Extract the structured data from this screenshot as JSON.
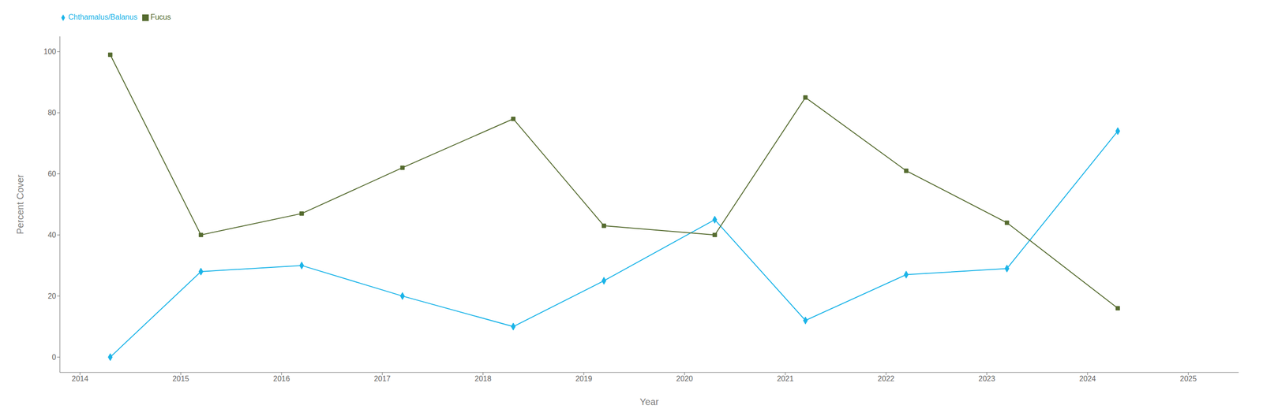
{
  "chart_data": {
    "type": "line",
    "x": [
      2014.3,
      2015.2,
      2016.2,
      2017.2,
      2018.3,
      2019.2,
      2020.3,
      2021.2,
      2022.2,
      2023.2,
      2024.3
    ],
    "series": [
      {
        "name": "Chthamalus/Balanus",
        "color": "#1BB4E8",
        "marker": "diamond",
        "values": [
          0,
          28,
          30,
          20,
          10,
          25,
          45,
          12,
          27,
          29,
          74
        ]
      },
      {
        "name": "Fucus",
        "color": "#556B2F",
        "marker": "square",
        "values": [
          99,
          40,
          47,
          62,
          78,
          43,
          40,
          85,
          61,
          44,
          16
        ]
      }
    ],
    "xlabel": "Year",
    "ylabel": "Percent Cover",
    "xlim": [
      2013.8,
      2025.5
    ],
    "ylim": [
      -5,
      105
    ],
    "xticks": [
      2014,
      2015,
      2016,
      2017,
      2018,
      2019,
      2020,
      2021,
      2022,
      2023,
      2024,
      2025
    ],
    "yticks": [
      0,
      20,
      40,
      60,
      80,
      100
    ],
    "grid": false
  }
}
